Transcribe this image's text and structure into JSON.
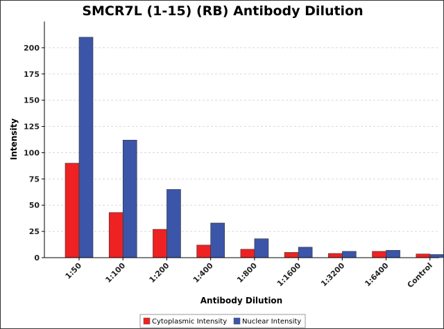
{
  "chart_data": {
    "type": "bar",
    "title": "SMCR7L (1-15) (RB) Antibody Dilution",
    "xlabel": "Antibody Dilution",
    "ylabel": "Intensity",
    "categories": [
      "1:50",
      "1:100",
      "1:200",
      "1:400",
      "1:800",
      "1:1600",
      "1:3200",
      "1:6400",
      "Control"
    ],
    "series": [
      {
        "name": "Cytoplasmic Intensity",
        "color": "#ee2222",
        "values": [
          90,
          43,
          27,
          12,
          8,
          5,
          4,
          6,
          3.5
        ]
      },
      {
        "name": "Nuclear Intensity",
        "color": "#3b55a8",
        "values": [
          210,
          112,
          65,
          33,
          18,
          10,
          6,
          7,
          3
        ]
      }
    ],
    "ylim": [
      0,
      225
    ],
    "yticks": [
      0,
      25,
      50,
      75,
      100,
      125,
      150,
      175,
      200
    ],
    "grid": true,
    "legend_position": "bottom-center"
  }
}
